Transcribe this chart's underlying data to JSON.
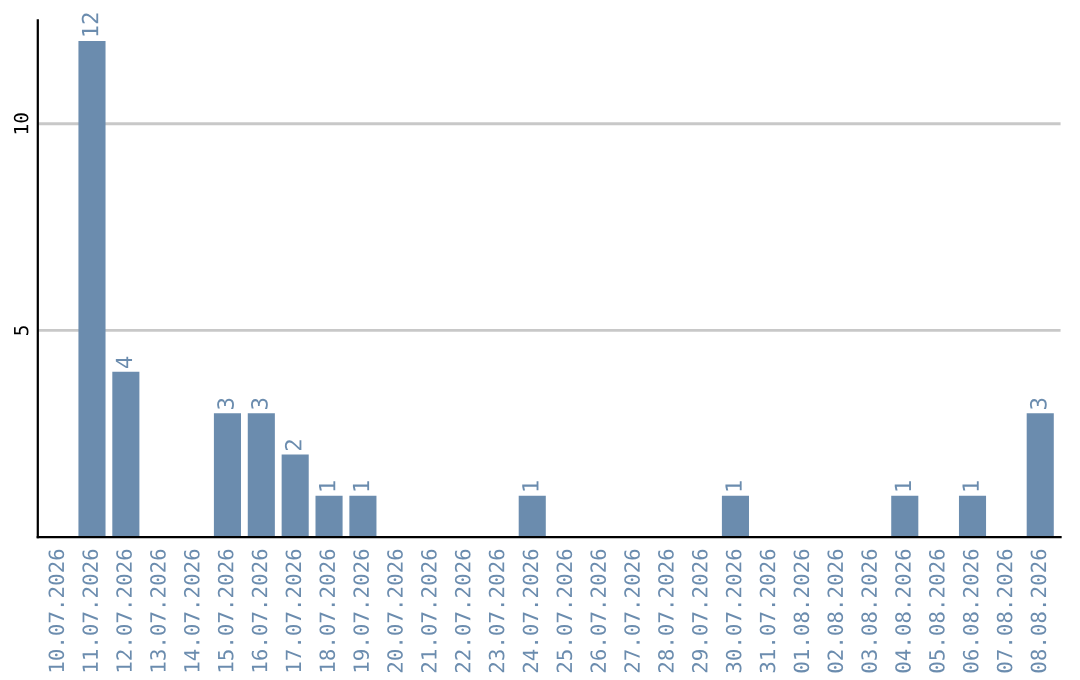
{
  "chart_data": {
    "type": "bar",
    "categories": [
      "10.07.2026",
      "11.07.2026",
      "12.07.2026",
      "13.07.2026",
      "14.07.2026",
      "15.07.2026",
      "16.07.2026",
      "17.07.2026",
      "18.07.2026",
      "19.07.2026",
      "20.07.2026",
      "21.07.2026",
      "22.07.2026",
      "23.07.2026",
      "24.07.2026",
      "25.07.2026",
      "26.07.2026",
      "27.07.2026",
      "28.07.2026",
      "29.07.2026",
      "30.07.2026",
      "31.07.2026",
      "01.08.2026",
      "02.08.2026",
      "03.08.2026",
      "04.08.2026",
      "05.08.2026",
      "06.08.2026",
      "07.08.2026",
      "08.08.2026"
    ],
    "values": [
      0,
      12,
      4,
      0,
      0,
      3,
      3,
      2,
      1,
      1,
      0,
      0,
      0,
      0,
      1,
      0,
      0,
      0,
      0,
      0,
      1,
      0,
      0,
      0,
      0,
      1,
      0,
      1,
      0,
      3
    ],
    "value_labels": [
      null,
      "12",
      "4",
      null,
      null,
      "3",
      "3",
      "2",
      "1",
      "1",
      null,
      null,
      null,
      null,
      "1",
      null,
      null,
      null,
      null,
      null,
      "1",
      null,
      null,
      null,
      null,
      "1",
      null,
      "1",
      null,
      "3"
    ],
    "color": "#6b8cae",
    "ylim": [
      0,
      12.5
    ],
    "yticks": [
      5,
      10
    ],
    "grid": "y"
  }
}
